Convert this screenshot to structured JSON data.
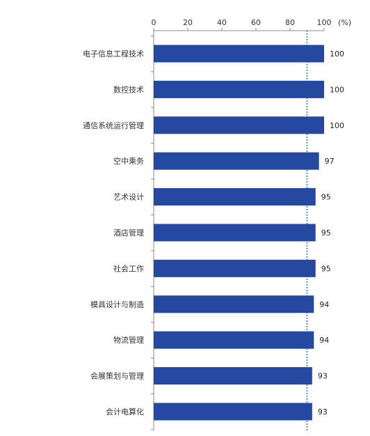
{
  "chart_data": {
    "type": "bar",
    "orientation": "horizontal",
    "categories": [
      "电子信息工程技术",
      "数控技术",
      "通信系统运行管理",
      "空中乘务",
      "艺术设计",
      "酒店管理",
      "社会工作",
      "模具设计与制造",
      "物流管理",
      "会展策划与管理",
      "会计电算化"
    ],
    "values": [
      100,
      100,
      100,
      97,
      95,
      95,
      95,
      94,
      94,
      93,
      93
    ],
    "value_labels": [
      "100",
      "100",
      "100",
      "97",
      "95",
      "95",
      "95",
      "94",
      "94",
      "93",
      "93"
    ],
    "x_ticks": [
      "0",
      "20",
      "40",
      "60",
      "80",
      "100"
    ],
    "x_unit": "(%)",
    "xlim": [
      0,
      100
    ],
    "reference_line": 90,
    "axis_position": "top",
    "grid": false,
    "legend": "none",
    "colors": {
      "bar": "#2549A0",
      "reference_line": "#7E9DC9",
      "axis": "#888888",
      "text": "#333333"
    }
  }
}
